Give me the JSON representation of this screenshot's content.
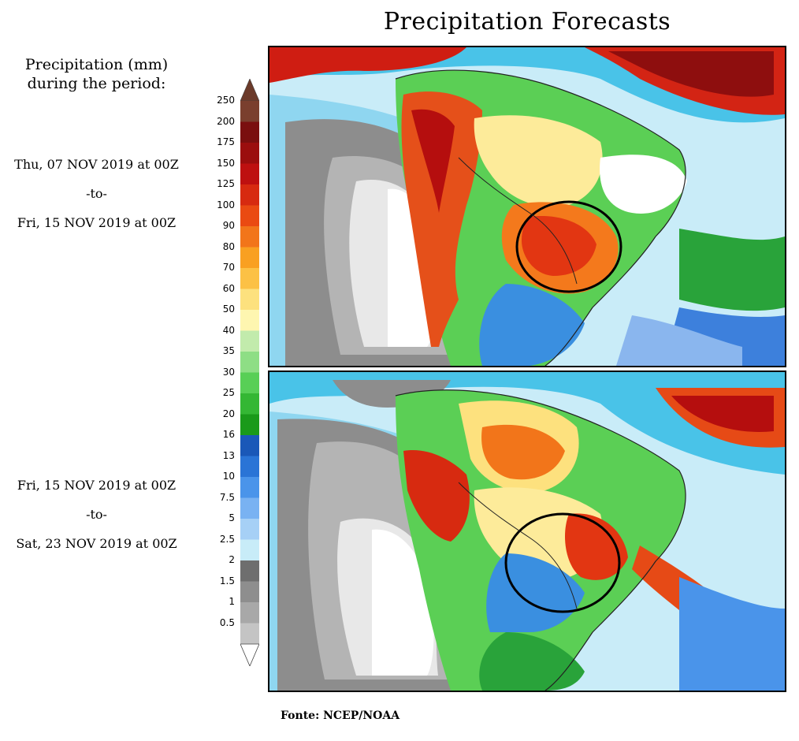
{
  "title": "Precipitation Forecasts",
  "legend_title": [
    "Precipitation (mm)",
    "during the period:"
  ],
  "periods": [
    {
      "start": "Thu, 07 NOV 2019 at 00Z",
      "to": "-to-",
      "end": "Fri, 15 NOV 2019 at 00Z"
    },
    {
      "start": "Fri, 15 NOV 2019 at 00Z",
      "to": "-to-",
      "end": "Sat, 23 NOV 2019 at 00Z"
    }
  ],
  "source": "Fonte: NCEP/NOAA",
  "colorbar": {
    "labels": [
      "250",
      "200",
      "175",
      "150",
      "125",
      "100",
      "90",
      "80",
      "70",
      "60",
      "50",
      "40",
      "35",
      "30",
      "25",
      "20",
      "16",
      "13",
      "10",
      "7.5",
      "5",
      "2.5",
      "2",
      "1.5",
      "1",
      "0.5"
    ],
    "colors": [
      "#7a3f2e",
      "#7a0f0f",
      "#9b0e0e",
      "#be1010",
      "#d72a10",
      "#ea4a12",
      "#f2751a",
      "#f9a021",
      "#fcc145",
      "#fde17e",
      "#fef6b0",
      "#c2ebac",
      "#8ede85",
      "#58cf56",
      "#34b734",
      "#1a9a1a",
      "#1a58b8",
      "#2a74d6",
      "#4a94ea",
      "#79b2f2",
      "#a6d0f6",
      "#c8ecf8",
      "#6e6e6e",
      "#8e8e8e",
      "#a8a8a8",
      "#c4c4c4"
    ],
    "top_color": "#6b3a2a",
    "bottom_color": "#ffffff"
  }
}
